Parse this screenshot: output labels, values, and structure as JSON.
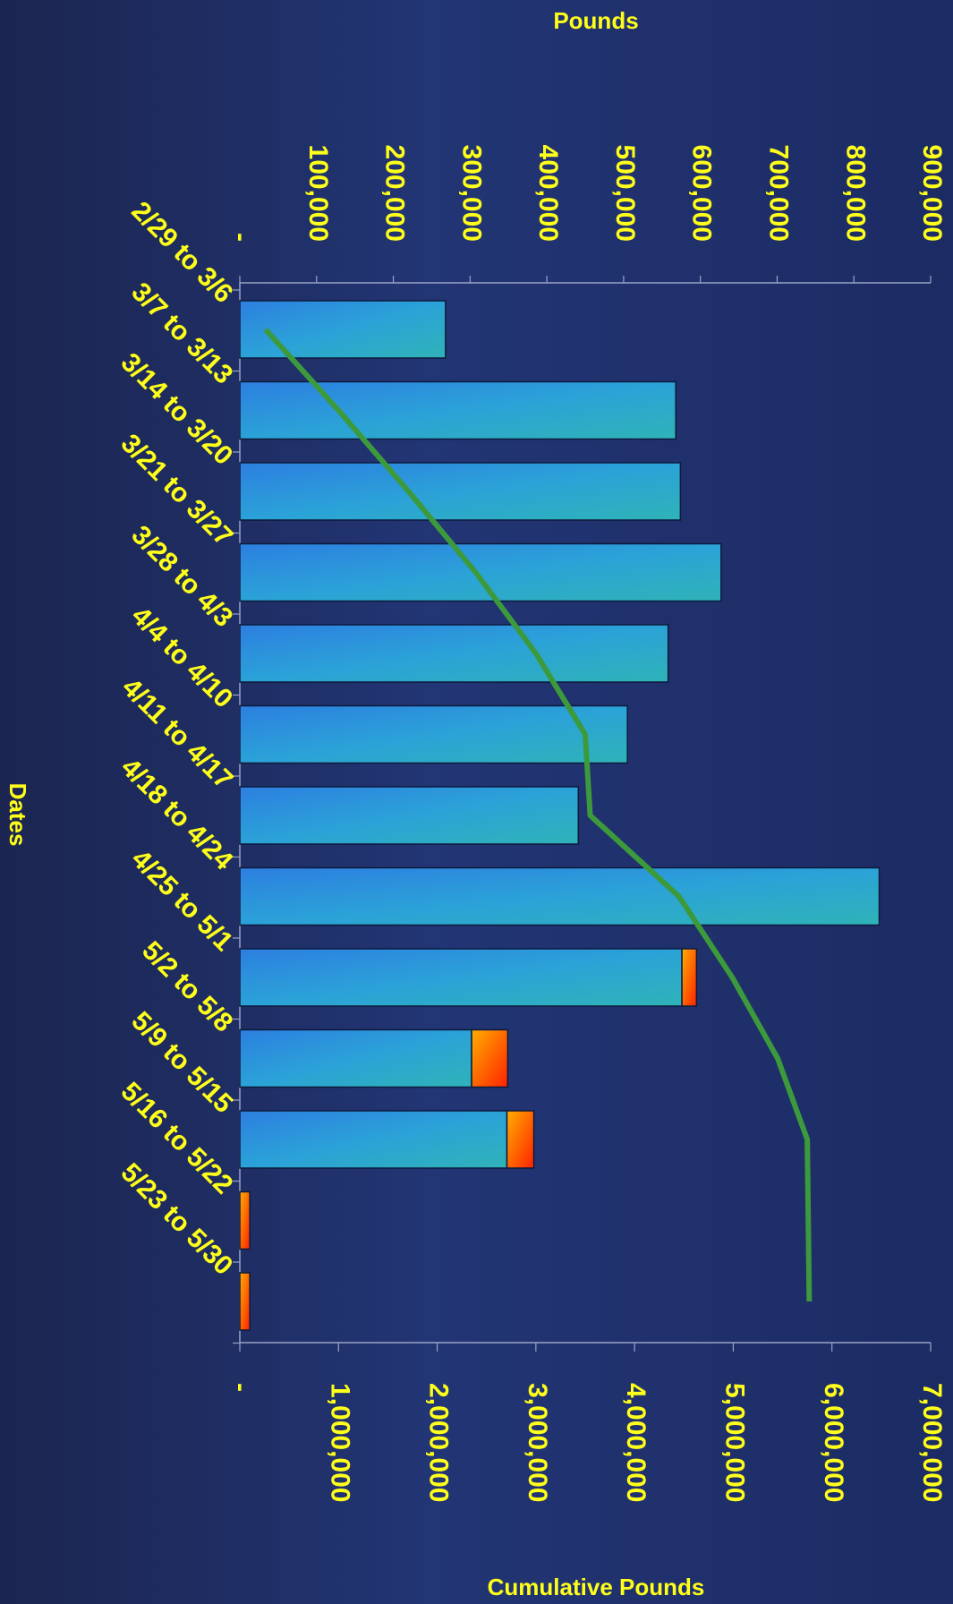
{
  "chart_data": {
    "type": "bar",
    "orientation": "horizontal",
    "title": "",
    "ylabel": "Dates",
    "xlabel_top": "Pounds",
    "xlabel_bottom": "Cumulative Pounds",
    "categories": [
      "2/29 to 3/6",
      "3/7 to 3/13",
      "3/14 to 3/20",
      "3/21 to 3/27",
      "3/28 to 4/3",
      "4/4 to 4/10",
      "4/11 to 4/17",
      "4/18 to 4/24",
      "4/25 to 5/1",
      "5/2 to 5/8",
      "5/9 to 5/15",
      "5/16 to 5/22",
      "5/23 to 5/30"
    ],
    "top_axis": {
      "range": [
        0,
        900000
      ],
      "ticks": [
        "-",
        "100,000",
        "200,000",
        "300,000",
        "400,000",
        "500,000",
        "600,000",
        "700,000",
        "800,000",
        "900,000"
      ]
    },
    "bottom_axis": {
      "range": [
        0,
        7000000
      ],
      "ticks": [
        "-",
        "1,000,000",
        "2,000,000",
        "3,000,000",
        "4,000,000",
        "5,000,000",
        "6,000,000",
        "7,000,000"
      ]
    },
    "series": [
      {
        "values": [
          268000,
          568000,
          574000,
          627000,
          558000,
          505000,
          441000,
          833000,
          576000,
          302000,
          348000,
          0,
          0
        ],
        "color": "#2f8fd6",
        "axis": "top",
        "kind": "bar"
      },
      {
        "values": [
          0,
          0,
          0,
          0,
          0,
          0,
          0,
          0,
          19000,
          47000,
          35000,
          13000,
          13000
        ],
        "color": "#ff6a00",
        "axis": "top",
        "kind": "bar"
      },
      {
        "values": [
          260000,
          1000000,
          1710000,
          2390000,
          3000000,
          3500000,
          3550000,
          4450000,
          4990000,
          5450000,
          5750000,
          5760000,
          5770000
        ],
        "color": "#3c9a3c",
        "axis": "bottom",
        "kind": "line"
      }
    ],
    "grid": false,
    "legend": "none"
  }
}
